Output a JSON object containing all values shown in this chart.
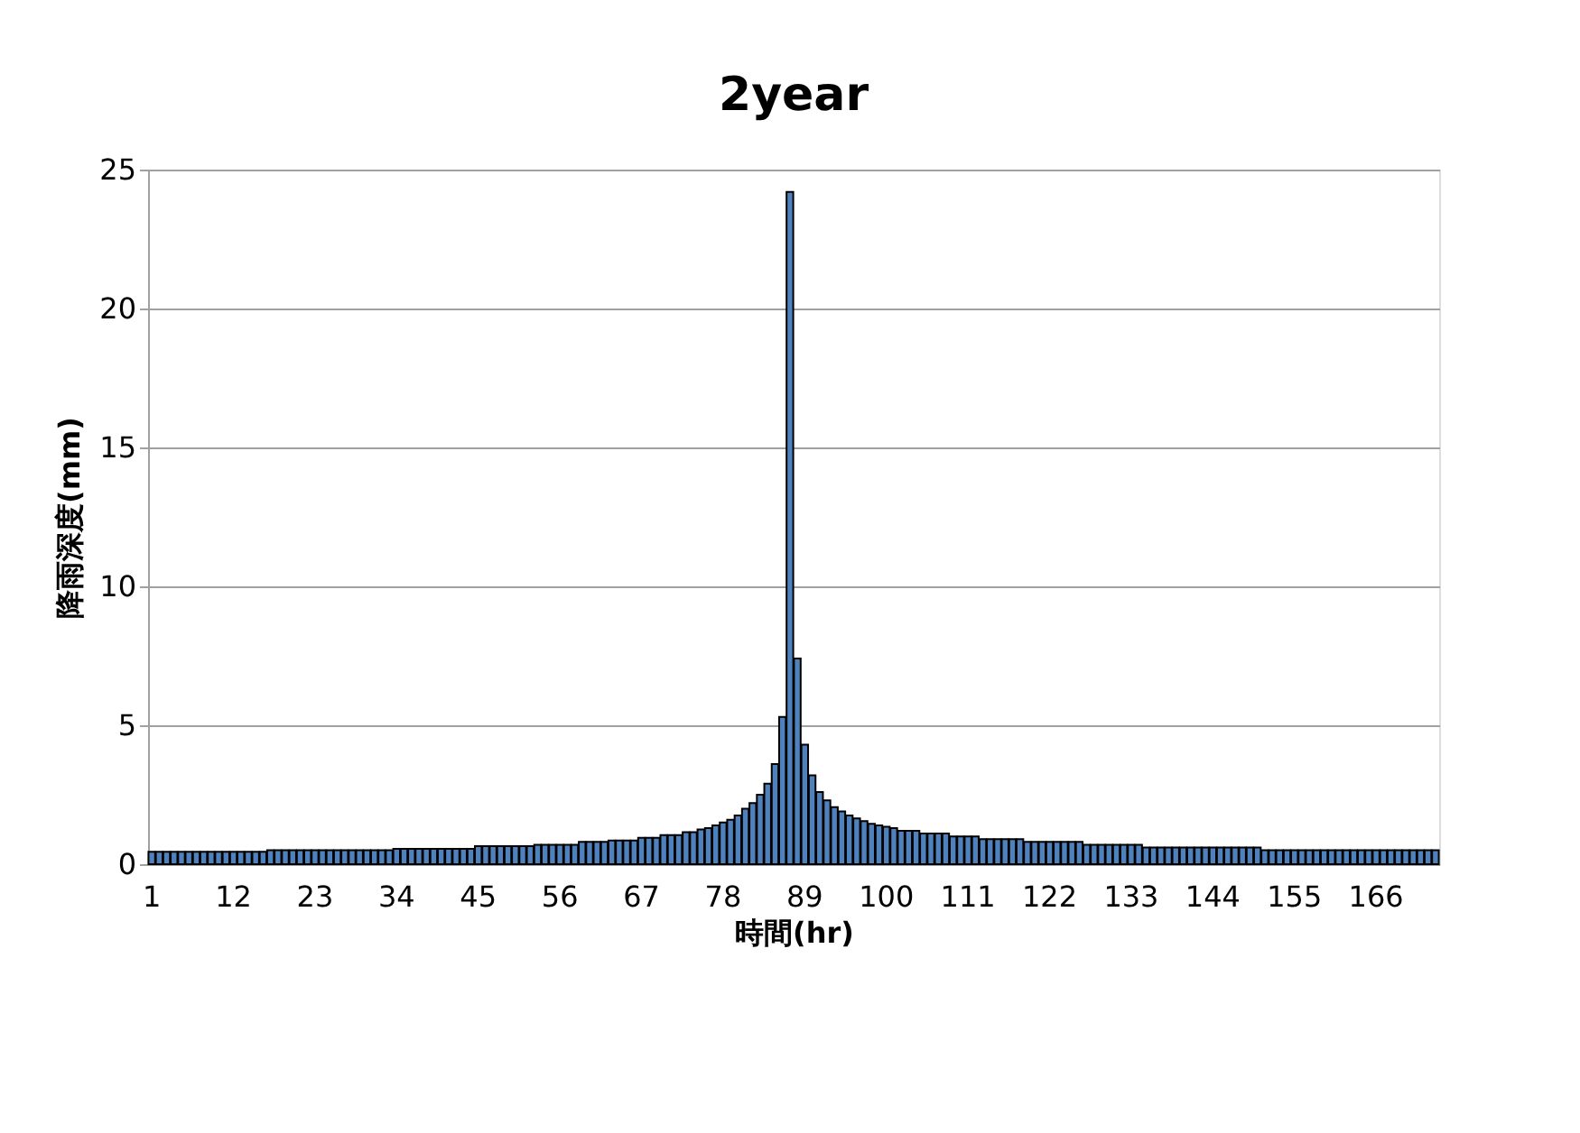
{
  "chart_data": {
    "type": "bar",
    "title": "2year",
    "xlabel": "時間(hr)",
    "ylabel": "降雨深度(mm)",
    "categories": [
      "1",
      null,
      null,
      null,
      null,
      null,
      null,
      null,
      null,
      null,
      null,
      "12",
      null,
      null,
      null,
      null,
      null,
      null,
      null,
      null,
      null,
      null,
      "23",
      null,
      null,
      null,
      null,
      null,
      null,
      null,
      null,
      null,
      null,
      "34",
      null,
      null,
      null,
      null,
      null,
      null,
      null,
      null,
      null,
      null,
      "45",
      null,
      null,
      null,
      null,
      null,
      null,
      null,
      null,
      null,
      null,
      "56",
      null,
      null,
      null,
      null,
      null,
      null,
      null,
      null,
      null,
      null,
      "67",
      null,
      null,
      null,
      null,
      null,
      null,
      null,
      null,
      null,
      null,
      "78",
      null,
      null,
      null,
      null,
      null,
      null,
      null,
      null,
      null,
      null,
      "89",
      null,
      null,
      null,
      null,
      null,
      null,
      null,
      null,
      null,
      null,
      "100",
      null,
      null,
      null,
      null,
      null,
      null,
      null,
      null,
      null,
      null,
      "111",
      null,
      null,
      null,
      null,
      null,
      null,
      null,
      null,
      null,
      null,
      "122",
      null,
      null,
      null,
      null,
      null,
      null,
      null,
      null,
      null,
      null,
      "133",
      null,
      null,
      null,
      null,
      null,
      null,
      null,
      null,
      null,
      null,
      "144",
      null,
      null,
      null,
      null,
      null,
      null,
      null,
      null,
      null,
      null,
      "155",
      null,
      null,
      null,
      null,
      null,
      null,
      null,
      null,
      null,
      null,
      "166",
      null,
      null,
      null,
      null,
      null,
      null,
      null,
      null
    ],
    "values": [
      0.45,
      0.45,
      0.45,
      0.45,
      0.45,
      0.45,
      0.45,
      0.45,
      0.45,
      0.45,
      0.45,
      0.45,
      0.45,
      0.45,
      0.45,
      0.45,
      0.5,
      0.5,
      0.5,
      0.5,
      0.5,
      0.5,
      0.5,
      0.5,
      0.5,
      0.5,
      0.5,
      0.5,
      0.5,
      0.5,
      0.5,
      0.5,
      0.5,
      0.55,
      0.55,
      0.55,
      0.55,
      0.55,
      0.55,
      0.55,
      0.55,
      0.55,
      0.55,
      0.55,
      0.65,
      0.65,
      0.65,
      0.65,
      0.65,
      0.65,
      0.65,
      0.65,
      0.7,
      0.7,
      0.7,
      0.7,
      0.7,
      0.7,
      0.8,
      0.8,
      0.8,
      0.8,
      0.85,
      0.85,
      0.85,
      0.85,
      0.95,
      0.95,
      0.95,
      1.05,
      1.05,
      1.05,
      1.15,
      1.15,
      1.25,
      1.3,
      1.4,
      1.5,
      1.6,
      1.75,
      2.0,
      2.2,
      2.5,
      2.9,
      3.6,
      5.3,
      24.2,
      7.4,
      4.3,
      3.2,
      2.6,
      2.3,
      2.05,
      1.9,
      1.75,
      1.65,
      1.55,
      1.45,
      1.4,
      1.35,
      1.3,
      1.2,
      1.2,
      1.2,
      1.1,
      1.1,
      1.1,
      1.1,
      1.0,
      1.0,
      1.0,
      1.0,
      0.9,
      0.9,
      0.9,
      0.9,
      0.9,
      0.9,
      0.8,
      0.8,
      0.8,
      0.8,
      0.8,
      0.8,
      0.8,
      0.8,
      0.7,
      0.7,
      0.7,
      0.7,
      0.7,
      0.7,
      0.7,
      0.7,
      0.6,
      0.6,
      0.6,
      0.6,
      0.6,
      0.6,
      0.6,
      0.6,
      0.6,
      0.6,
      0.6,
      0.6,
      0.6,
      0.6,
      0.6,
      0.6,
      0.5,
      0.5,
      0.5,
      0.5,
      0.5,
      0.5,
      0.5,
      0.5,
      0.5,
      0.5,
      0.5,
      0.5,
      0.5,
      0.5,
      0.5,
      0.5,
      0.5,
      0.5,
      0.5,
      0.5,
      0.5,
      0.5,
      0.5,
      0.5
    ],
    "color": "#4f81bd",
    "ylim": [
      0,
      25
    ],
    "yticks": [
      0,
      5,
      10,
      15,
      20,
      25
    ],
    "grid": "y"
  }
}
